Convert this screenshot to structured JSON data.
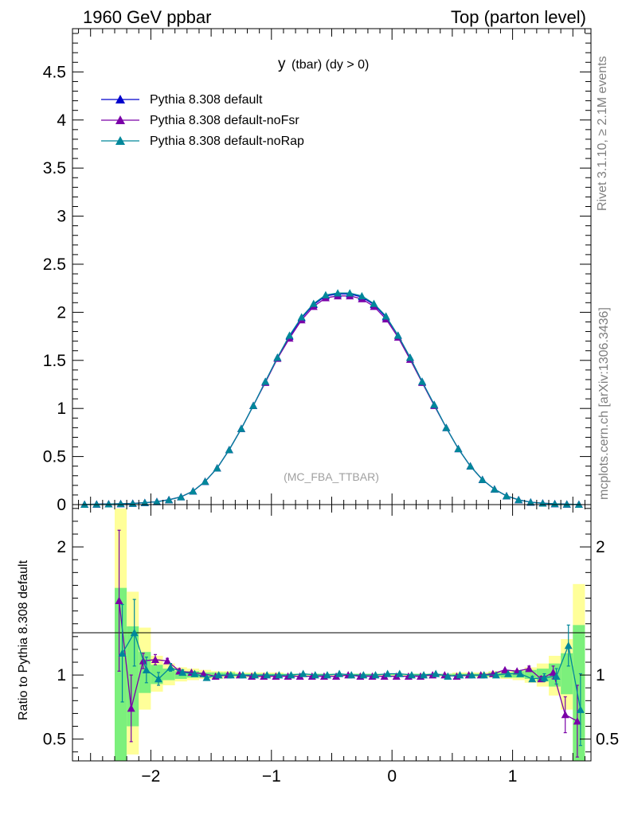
{
  "header": {
    "left": "1960 GeV ppbar",
    "right": "Top (parton level)"
  },
  "side": {
    "rivet": "Rivet 3.1.10, ≥ 2.1M events",
    "mcplots": "mcplots.cern.ch [arXiv:1306.3436]"
  },
  "plot": {
    "title_main": "y",
    "title_rest": "(tbar) (dy > 0)",
    "watermark": "(MC_FBA_TTBAR)"
  },
  "ratio": {
    "ylabel": "Ratio to Pythia 8.308 default"
  },
  "colors": {
    "default": "#0000cc",
    "noFsr": "#7a00a8",
    "noRap": "#00879a",
    "band_outer": "#ffff99",
    "band_inner": "#7cf07c"
  },
  "chart_data": [
    {
      "type": "line",
      "title": "y (tbar) (dy > 0)",
      "xlim": [
        -2.65,
        1.65
      ],
      "ylim": [
        0,
        4.95
      ],
      "x_ticks": [
        -2,
        -1,
        0,
        1
      ],
      "x_tick_labels": [
        "−2",
        "−1",
        "0",
        "1"
      ],
      "y_ticks": [
        0,
        0.5,
        1,
        1.5,
        2,
        2.5,
        3,
        3.5,
        4,
        4.5
      ],
      "y_tick_labels": [
        "0",
        "0.5",
        "1",
        "1.5",
        "2",
        "2.5",
        "3",
        "3.5",
        "4",
        "4.5"
      ],
      "legend_position": "top-left",
      "x": [
        -2.55,
        -2.45,
        -2.35,
        -2.25,
        -2.15,
        -2.05,
        -1.95,
        -1.85,
        -1.75,
        -1.65,
        -1.55,
        -1.45,
        -1.35,
        -1.25,
        -1.15,
        -1.05,
        -0.95,
        -0.85,
        -0.75,
        -0.65,
        -0.55,
        -0.45,
        -0.35,
        -0.25,
        -0.15,
        -0.05,
        0.05,
        0.15,
        0.25,
        0.35,
        0.45,
        0.55,
        0.65,
        0.75,
        0.85,
        0.95,
        1.05,
        1.15,
        1.25,
        1.35,
        1.45,
        1.55
      ],
      "series": [
        {
          "name": "Pythia 8.308 default",
          "color": "#0000cc",
          "values": [
            0.002,
            0.004,
            0.006,
            0.008,
            0.012,
            0.02,
            0.03,
            0.05,
            0.08,
            0.14,
            0.24,
            0.38,
            0.57,
            0.79,
            1.03,
            1.28,
            1.53,
            1.75,
            1.94,
            2.08,
            2.17,
            2.19,
            2.19,
            2.16,
            2.08,
            1.95,
            1.76,
            1.53,
            1.28,
            1.04,
            0.8,
            0.58,
            0.4,
            0.26,
            0.16,
            0.09,
            0.05,
            0.025,
            0.014,
            0.008,
            0.004,
            0.002
          ]
        },
        {
          "name": "Pythia 8.308 default-noFsr",
          "color": "#7a00a8",
          "values": [
            0.002,
            0.004,
            0.006,
            0.009,
            0.013,
            0.021,
            0.031,
            0.051,
            0.081,
            0.14,
            0.24,
            0.38,
            0.57,
            0.79,
            1.03,
            1.27,
            1.52,
            1.73,
            1.92,
            2.06,
            2.15,
            2.17,
            2.17,
            2.14,
            2.06,
            1.93,
            1.74,
            1.51,
            1.27,
            1.03,
            0.8,
            0.58,
            0.4,
            0.26,
            0.16,
            0.09,
            0.05,
            0.025,
            0.014,
            0.008,
            0.004,
            0.002
          ]
        },
        {
          "name": "Pythia 8.308 default-noRap",
          "color": "#00879a",
          "values": [
            0.002,
            0.004,
            0.006,
            0.009,
            0.012,
            0.021,
            0.03,
            0.05,
            0.08,
            0.14,
            0.24,
            0.38,
            0.57,
            0.79,
            1.03,
            1.28,
            1.53,
            1.76,
            1.95,
            2.09,
            2.18,
            2.2,
            2.2,
            2.17,
            2.09,
            1.96,
            1.76,
            1.53,
            1.28,
            1.04,
            0.8,
            0.58,
            0.4,
            0.26,
            0.16,
            0.09,
            0.05,
            0.025,
            0.014,
            0.008,
            0.004,
            0.002
          ]
        }
      ]
    },
    {
      "type": "line",
      "ylabel": "Ratio to Pythia 8.308 default",
      "xlim": [
        -2.65,
        1.65
      ],
      "ylim": [
        0.33,
        2.33
      ],
      "x_ticks": [
        -2,
        -1,
        0,
        1
      ],
      "x_tick_labels": [
        "−2",
        "−1",
        "0",
        "1"
      ],
      "y_ticks": [
        0.5,
        1,
        2
      ],
      "y_tick_labels": [
        "0.5",
        "1",
        "2"
      ],
      "x": [
        -2.25,
        -2.15,
        -2.05,
        -1.95,
        -1.85,
        -1.75,
        -1.65,
        -1.55,
        -1.45,
        -1.35,
        -1.25,
        -1.15,
        -1.05,
        -0.95,
        -0.85,
        -0.75,
        -0.65,
        -0.55,
        -0.45,
        -0.35,
        -0.25,
        -0.15,
        -0.05,
        0.05,
        0.15,
        0.25,
        0.35,
        0.45,
        0.55,
        0.65,
        0.75,
        0.85,
        0.95,
        1.05,
        1.15,
        1.25,
        1.35,
        1.45,
        1.55
      ],
      "band_outer": [
        [
          0.33,
          2.3
        ],
        [
          0.38,
          1.65
        ],
        [
          0.73,
          1.37
        ],
        [
          0.87,
          1.15
        ],
        [
          0.92,
          1.09
        ],
        [
          0.95,
          1.06
        ],
        [
          0.96,
          1.05
        ],
        [
          0.97,
          1.04
        ],
        [
          0.97,
          1.03
        ],
        [
          0.98,
          1.03
        ],
        [
          0.98,
          1.02
        ],
        [
          0.98,
          1.02
        ],
        [
          0.98,
          1.02
        ],
        [
          0.99,
          1.02
        ],
        [
          0.99,
          1.01
        ],
        [
          0.99,
          1.01
        ],
        [
          0.99,
          1.01
        ],
        [
          0.99,
          1.01
        ],
        [
          0.99,
          1.01
        ],
        [
          0.99,
          1.01
        ],
        [
          0.99,
          1.01
        ],
        [
          0.99,
          1.01
        ],
        [
          0.99,
          1.01
        ],
        [
          0.99,
          1.01
        ],
        [
          0.99,
          1.01
        ],
        [
          0.99,
          1.01
        ],
        [
          0.99,
          1.01
        ],
        [
          0.99,
          1.01
        ],
        [
          0.99,
          1.02
        ],
        [
          0.99,
          1.02
        ],
        [
          0.98,
          1.02
        ],
        [
          0.98,
          1.03
        ],
        [
          0.97,
          1.03
        ],
        [
          0.96,
          1.04
        ],
        [
          0.94,
          1.06
        ],
        [
          0.91,
          1.09
        ],
        [
          0.84,
          1.15
        ],
        [
          0.73,
          1.28
        ],
        [
          0.33,
          1.71
        ]
      ],
      "band_inner": [
        [
          0.33,
          1.68
        ],
        [
          0.6,
          1.38
        ],
        [
          0.86,
          1.18
        ],
        [
          0.93,
          1.08
        ],
        [
          0.96,
          1.05
        ],
        [
          0.97,
          1.03
        ],
        [
          0.98,
          1.03
        ],
        [
          0.98,
          1.02
        ],
        [
          0.99,
          1.02
        ],
        [
          0.99,
          1.02
        ],
        [
          0.99,
          1.01
        ],
        [
          0.99,
          1.01
        ],
        [
          0.99,
          1.01
        ],
        [
          0.99,
          1.01
        ],
        [
          0.99,
          1.01
        ],
        [
          1.0,
          1.01
        ],
        [
          1.0,
          1.01
        ],
        [
          1.0,
          1.01
        ],
        [
          1.0,
          1.01
        ],
        [
          1.0,
          1.01
        ],
        [
          1.0,
          1.01
        ],
        [
          1.0,
          1.01
        ],
        [
          1.0,
          1.01
        ],
        [
          1.0,
          1.01
        ],
        [
          1.0,
          1.01
        ],
        [
          1.0,
          1.01
        ],
        [
          1.0,
          1.01
        ],
        [
          1.0,
          1.01
        ],
        [
          0.99,
          1.01
        ],
        [
          0.99,
          1.01
        ],
        [
          0.99,
          1.01
        ],
        [
          0.99,
          1.02
        ],
        [
          0.98,
          1.02
        ],
        [
          0.98,
          1.03
        ],
        [
          0.97,
          1.04
        ],
        [
          0.95,
          1.05
        ],
        [
          0.91,
          1.09
        ],
        [
          0.85,
          1.17
        ],
        [
          0.33,
          1.39
        ]
      ],
      "series": [
        {
          "name": "Pythia 8.308 default-noFsr",
          "color": "#7a00a8",
          "values": [
            1.58,
            0.74,
            1.11,
            1.12,
            1.11,
            1.03,
            1.02,
            1.01,
            0.99,
            1.0,
            1.0,
            0.99,
            0.99,
            0.99,
            0.99,
            0.99,
            0.99,
            0.99,
            0.99,
            1.0,
            0.99,
            0.99,
            0.99,
            0.99,
            0.99,
            0.99,
            1.0,
            1.0,
            0.99,
            1.0,
            1.0,
            1.01,
            1.04,
            1.03,
            1.05,
            0.97,
            1.02,
            0.69,
            0.64
          ],
          "errors": [
            0.55,
            0.26,
            0.06,
            0.04,
            0.02,
            0.02,
            0.01,
            0.01,
            0.01,
            0.01,
            0.01,
            0.01,
            0.01,
            0.01,
            0.01,
            0.01,
            0.01,
            0.01,
            0.01,
            0.01,
            0.01,
            0.01,
            0.01,
            0.01,
            0.01,
            0.01,
            0.01,
            0.01,
            0.01,
            0.01,
            0.01,
            0.01,
            0.01,
            0.01,
            0.02,
            0.02,
            0.05,
            0.14,
            0.28
          ]
        },
        {
          "name": "Pythia 8.308 default-noRap",
          "color": "#00879a",
          "values": [
            1.17,
            1.33,
            1.04,
            0.97,
            1.06,
            1.02,
            1.01,
            0.98,
            1.0,
            1.0,
            1.0,
            1.0,
            1.0,
            1.0,
            1.0,
            1.01,
            1.0,
            1.0,
            1.01,
            1.0,
            1.0,
            1.0,
            1.01,
            1.01,
            1.0,
            1.0,
            1.01,
            0.99,
            1.0,
            1.0,
            1.0,
            1.0,
            1.01,
            1.01,
            0.97,
            0.98,
            0.99,
            1.23,
            0.73
          ],
          "errors": [
            0.38,
            0.26,
            0.1,
            0.05,
            0.03,
            0.02,
            0.01,
            0.01,
            0.01,
            0.01,
            0.01,
            0.01,
            0.01,
            0.01,
            0.01,
            0.01,
            0.01,
            0.01,
            0.01,
            0.01,
            0.01,
            0.01,
            0.01,
            0.01,
            0.01,
            0.01,
            0.01,
            0.01,
            0.01,
            0.01,
            0.01,
            0.01,
            0.01,
            0.02,
            0.02,
            0.03,
            0.06,
            0.16,
            0.28
          ]
        }
      ]
    }
  ]
}
